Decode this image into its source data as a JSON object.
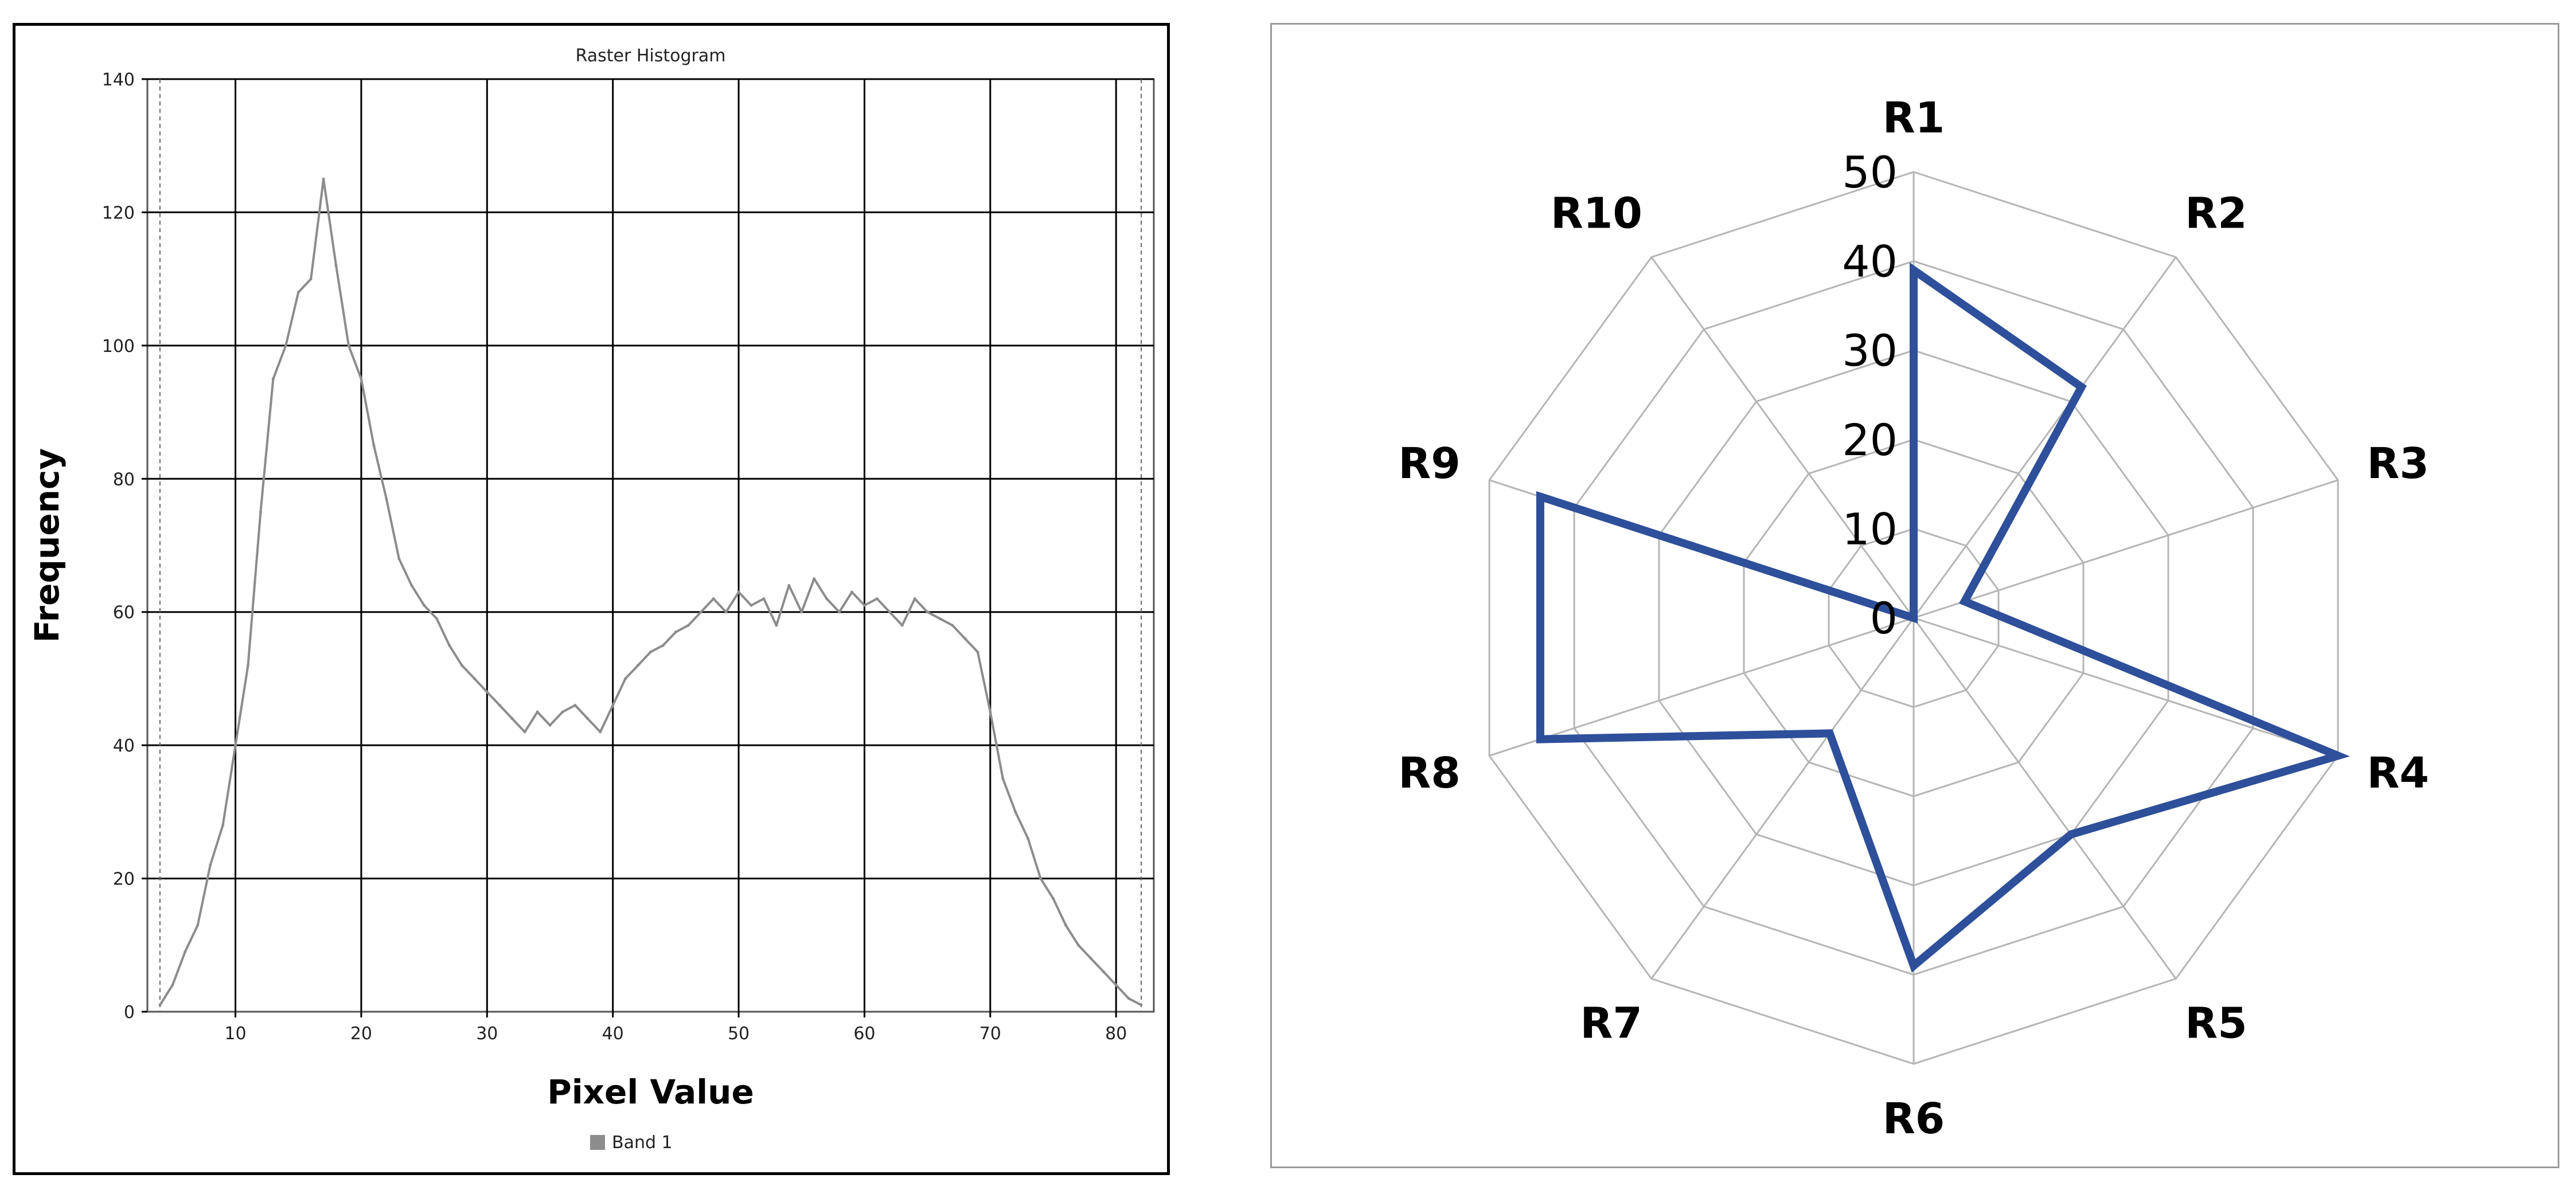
{
  "chart_data": [
    {
      "type": "line",
      "title": "Raster Histogram",
      "xlabel": "Pixel Value",
      "ylabel": "Frequency",
      "xlim": [
        3,
        83
      ],
      "ylim": [
        0,
        140
      ],
      "xticks": [
        10,
        20,
        30,
        40,
        50,
        60,
        70,
        80
      ],
      "yticks": [
        0,
        20,
        40,
        60,
        80,
        100,
        120,
        140
      ],
      "grid": true,
      "legend_position": "bottom-center",
      "series": [
        {
          "name": "Band 1",
          "color": "#8c8c8c",
          "x": [
            4,
            5,
            6,
            7,
            8,
            9,
            10,
            11,
            12,
            13,
            14,
            15,
            16,
            17,
            18,
            19,
            20,
            21,
            22,
            23,
            24,
            25,
            26,
            27,
            28,
            29,
            30,
            31,
            32,
            33,
            34,
            35,
            36,
            37,
            38,
            39,
            40,
            41,
            42,
            43,
            44,
            45,
            46,
            47,
            48,
            49,
            50,
            51,
            52,
            53,
            54,
            55,
            56,
            57,
            58,
            59,
            60,
            61,
            62,
            63,
            64,
            65,
            66,
            67,
            68,
            69,
            70,
            71,
            72,
            73,
            74,
            75,
            76,
            77,
            78,
            79,
            80,
            81,
            82
          ],
          "y": [
            1,
            4,
            9,
            13,
            22,
            28,
            40,
            52,
            75,
            95,
            100,
            108,
            110,
            125,
            112,
            100,
            95,
            85,
            77,
            68,
            64,
            61,
            59,
            55,
            52,
            50,
            48,
            46,
            44,
            42,
            45,
            43,
            45,
            46,
            44,
            42,
            46,
            50,
            52,
            54,
            55,
            57,
            58,
            60,
            62,
            60,
            63,
            61,
            62,
            58,
            64,
            60,
            65,
            62,
            60,
            63,
            61,
            62,
            60,
            58,
            62,
            60,
            59,
            58,
            56,
            54,
            45,
            35,
            30,
            26,
            20,
            17,
            13,
            10,
            8,
            6,
            4,
            2,
            1
          ]
        }
      ]
    },
    {
      "type": "radar",
      "categories": [
        "R1",
        "R2",
        "R3",
        "R4",
        "R5",
        "R6",
        "R7",
        "R8",
        "R9",
        "R10"
      ],
      "rings": [
        0,
        10,
        20,
        30,
        40,
        50
      ],
      "rlim": [
        0,
        50
      ],
      "grid": true,
      "series": [
        {
          "color": "#2e4f9a",
          "values": [
            39,
            32,
            6,
            50,
            30,
            39,
            16,
            44,
            44,
            0
          ]
        }
      ]
    }
  ]
}
